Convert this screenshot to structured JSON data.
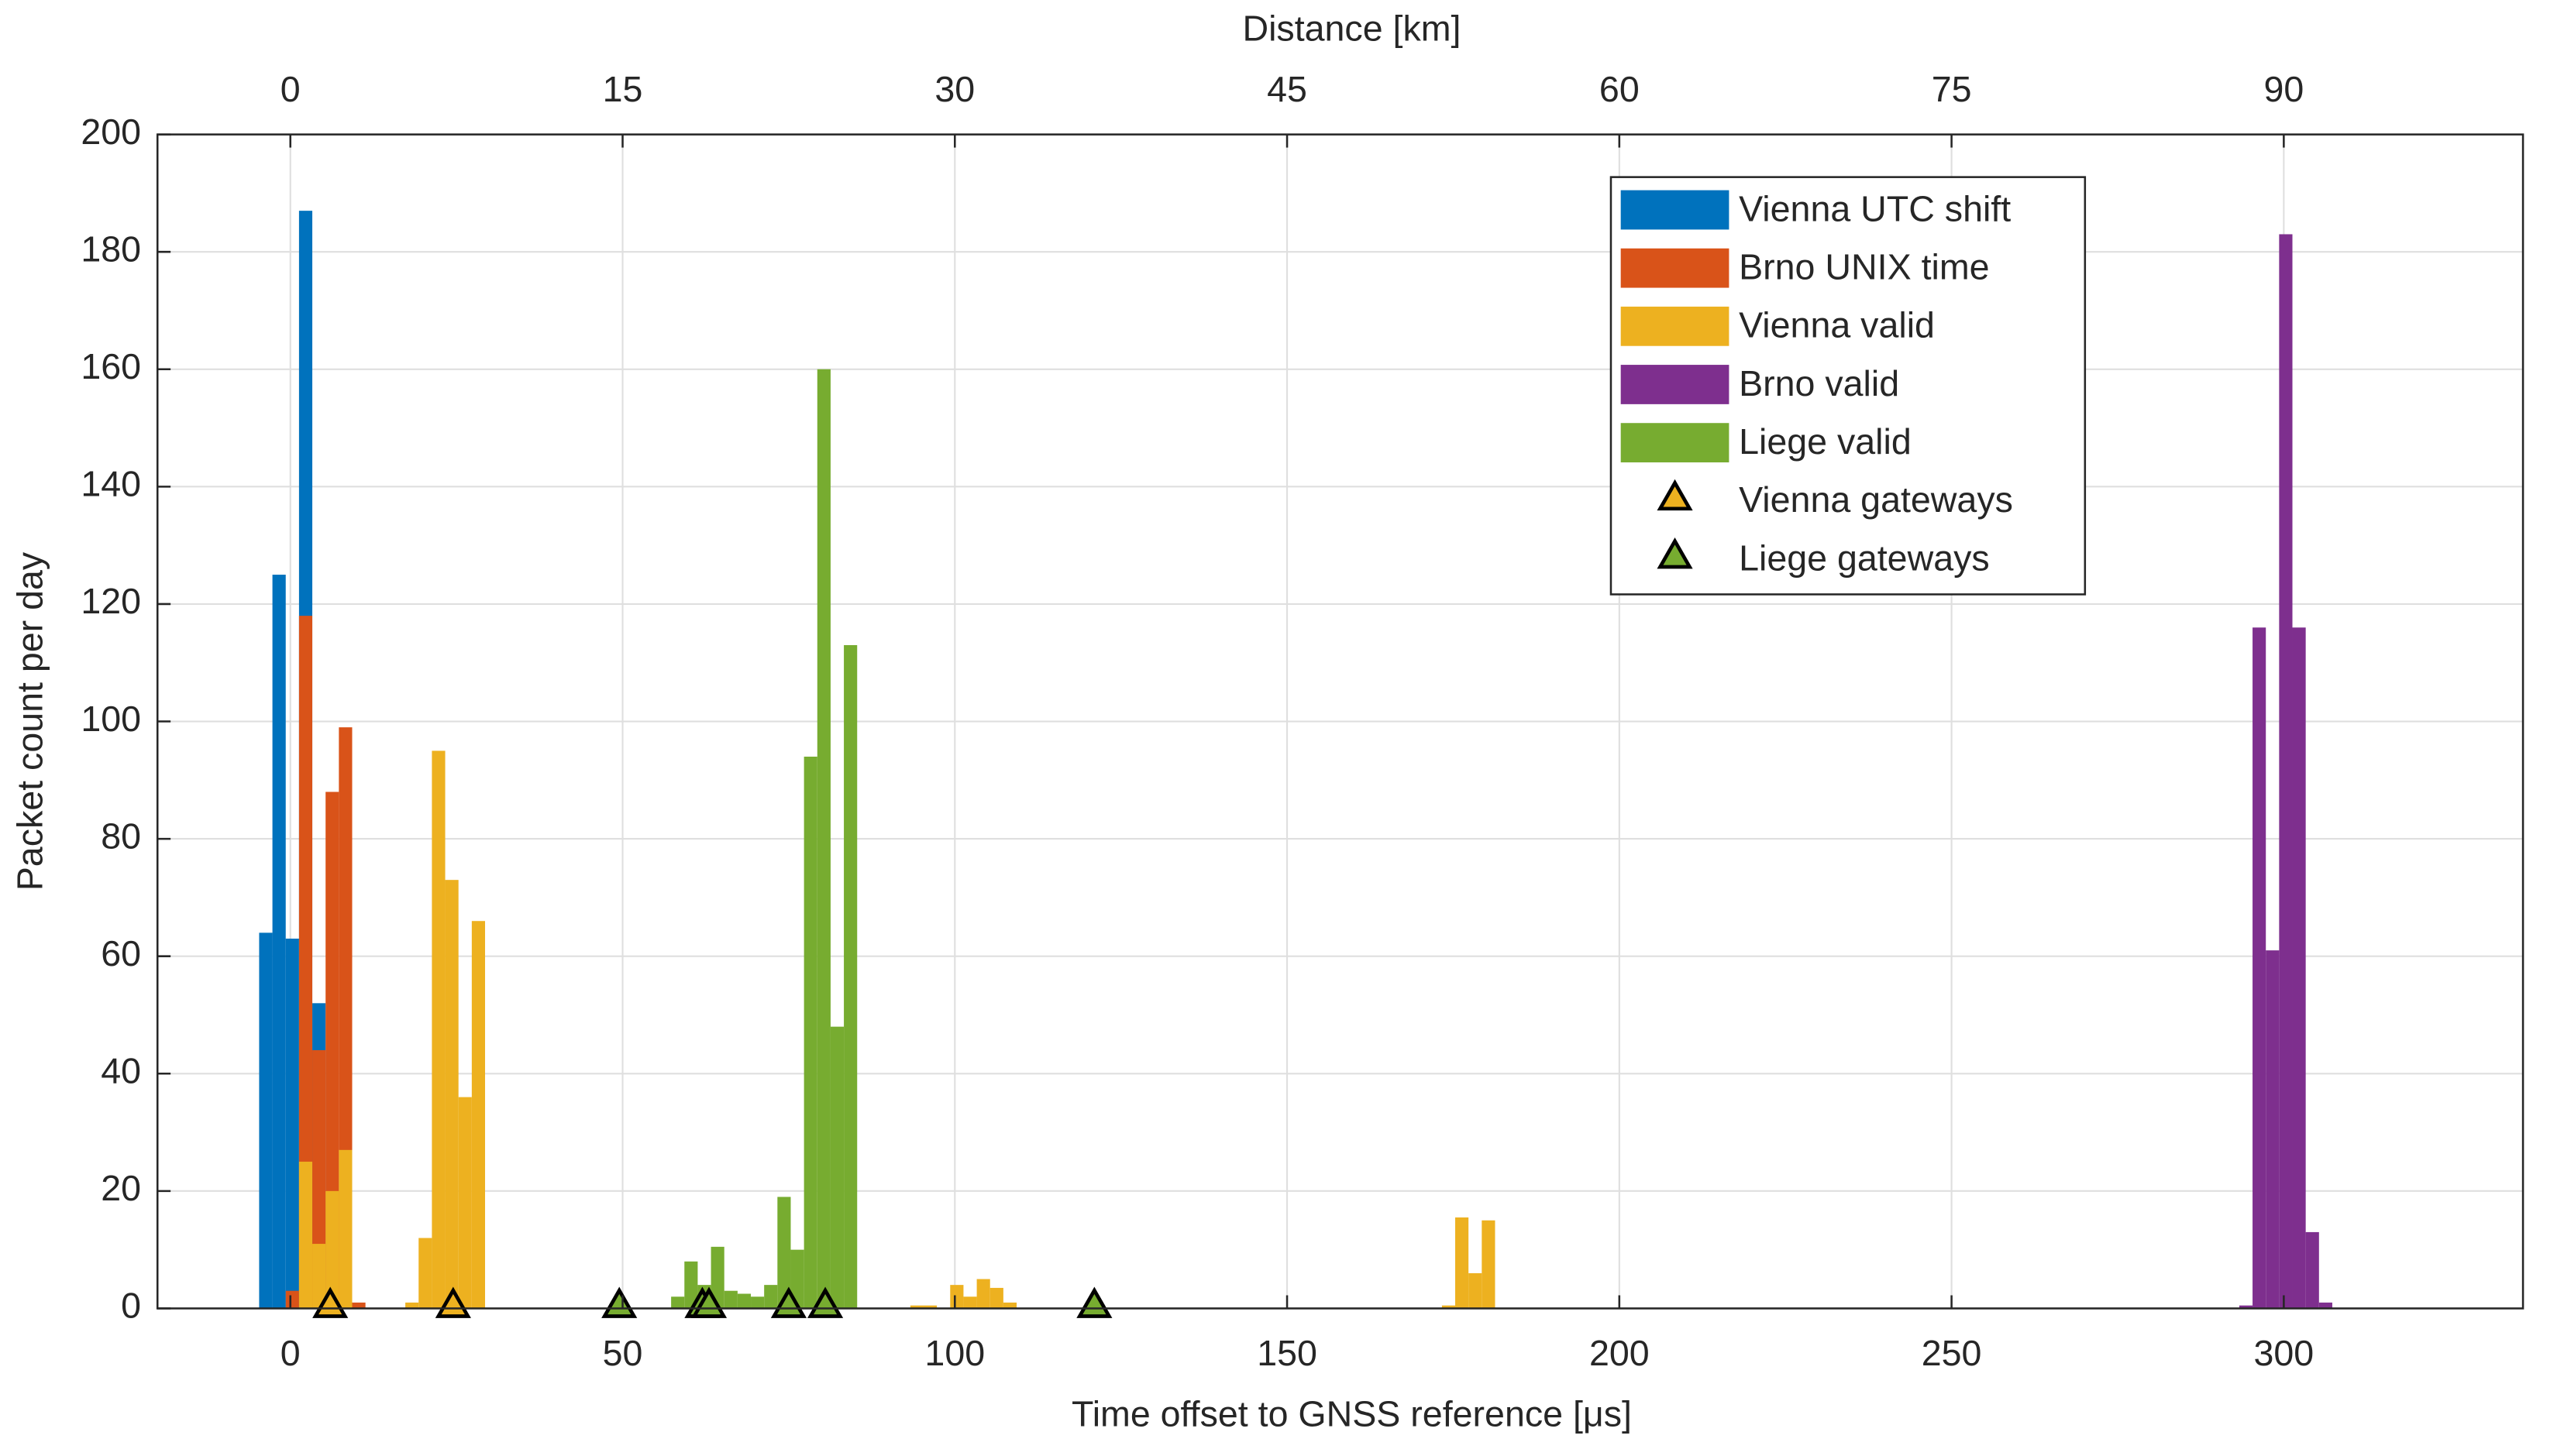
{
  "chart_data": {
    "type": "histogram",
    "xlabel": "Time offset to GNSS reference [μs]",
    "ylabel": "Packet count per day",
    "x2label": "Distance [km]",
    "xlim": [
      -20,
      336
    ],
    "xticks": [
      0,
      50,
      100,
      150,
      200,
      250,
      300
    ],
    "x2lim": [
      -6,
      100.8
    ],
    "x2ticks": [
      0,
      15,
      30,
      45,
      60,
      75,
      90
    ],
    "ylim": [
      0,
      200
    ],
    "yticks": [
      0,
      20,
      40,
      60,
      80,
      100,
      120,
      140,
      160,
      180,
      200
    ],
    "grid": true,
    "legend": "upper right",
    "series": [
      {
        "name": "Vienna UTC shift",
        "color": "#0072bd",
        "bins": [
          -4.7,
          -2.7,
          -0.7,
          1.3,
          3.3,
          5.3
        ],
        "values": [
          64,
          125,
          63,
          187,
          52
        ]
      },
      {
        "name": "Brno UNIX time",
        "color": "#d95319",
        "bins": [
          -0.7,
          1.3,
          3.3,
          5.3,
          7.3,
          9.3,
          11.3
        ],
        "values": [
          3,
          118,
          44,
          88,
          99,
          1
        ]
      },
      {
        "name": "Vienna valid",
        "color": "#edb120",
        "bins": [
          1.3,
          3.3,
          5.3,
          7.3,
          9.3,
          11.3,
          13.3,
          15.3,
          17.3,
          19.3,
          21.3,
          23.3,
          25.3,
          27.3,
          29.3,
          31.3,
          33.3,
          35.3,
          37.3,
          39.3,
          41.3,
          43.3,
          45.3,
          47.3,
          49.3,
          51.3,
          53.3,
          55.3,
          57.3,
          59.3,
          61.3,
          63.3,
          65.3,
          67.3,
          69.3,
          71.3,
          73.3,
          75.3,
          77.3,
          79.3,
          81.3,
          83.3,
          85.3,
          87.3,
          89.3,
          91.3,
          93.3,
          95.3,
          97.3,
          99.3,
          101.3,
          103.3,
          105.3,
          107.3,
          109.3,
          111.3,
          113.3,
          115.3,
          117.3,
          119.3,
          121.3,
          123.3,
          125.3,
          127.3,
          129.3,
          131.3,
          133.3,
          135.3,
          137.3,
          139.3,
          141.3,
          143.3,
          145.3,
          147.3,
          149.3,
          151.3,
          153.3,
          155.3,
          157.3,
          159.3,
          161.3,
          163.3,
          165.3,
          167.3,
          169.3,
          171.3,
          173.3,
          175.3,
          177.3,
          179.3,
          181.3
        ],
        "values": [
          25,
          11,
          20,
          27,
          0,
          0,
          0,
          0,
          1,
          12,
          95,
          73,
          36,
          66,
          0,
          0,
          0,
          0,
          0,
          0,
          0,
          0,
          0,
          0,
          0,
          0,
          0,
          0,
          0,
          0,
          0,
          0,
          0,
          0,
          0,
          0,
          0,
          0,
          0,
          0,
          0,
          0,
          0,
          0,
          0,
          0,
          0.5,
          0.5,
          0,
          4,
          2,
          5,
          3.5,
          1,
          0,
          0,
          0,
          0,
          0,
          0,
          0,
          0,
          0,
          0,
          0,
          0,
          0,
          0,
          0,
          0,
          0,
          0,
          0,
          0,
          0,
          0,
          0,
          0,
          0,
          0,
          0,
          0,
          0,
          0,
          0,
          0,
          0.5,
          15.5,
          6,
          15
        ]
      },
      {
        "name": "Brno valid",
        "color": "#7e2f8e",
        "bins": [
          293.3,
          295.3,
          297.3,
          299.3,
          301.3,
          303.3,
          305.3,
          307.3
        ],
        "values": [
          0.5,
          116,
          61,
          183,
          116,
          13,
          1
        ]
      },
      {
        "name": "Liege valid",
        "color": "#77ac30",
        "bins": [
          57.3,
          59.3,
          61.3,
          63.3,
          65.3,
          67.3,
          69.3,
          71.3,
          73.3,
          75.3,
          77.3,
          79.3,
          81.3,
          83.3,
          85.3
        ],
        "values": [
          2,
          8,
          4,
          10.5,
          3,
          2.5,
          2,
          4,
          19,
          10,
          94,
          160,
          48,
          113
        ]
      },
      {
        "name": "Vienna gateways",
        "type": "scatter",
        "marker": "triangle",
        "color": "#edb120",
        "x": [
          6,
          24.5
        ],
        "values": [
          0,
          0
        ]
      },
      {
        "name": "Liege gateways",
        "type": "scatter",
        "marker": "triangle",
        "color": "#77ac30",
        "x": [
          49.5,
          62,
          63,
          75,
          80.5,
          121
        ],
        "values": [
          0,
          0,
          0,
          0,
          0,
          0
        ]
      }
    ]
  }
}
